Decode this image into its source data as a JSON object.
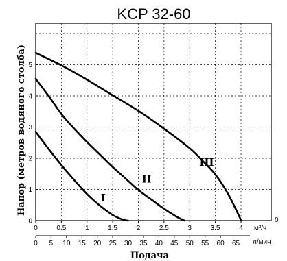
{
  "chart_data": {
    "type": "line",
    "title": "KCP 32-60",
    "xlabel": "Подача",
    "ylabel": "Напор (метров водяного столба)",
    "x_unit_primary": "м³/ч",
    "x_unit_secondary": "л/мин",
    "x_ticks_primary": [
      "0",
      "0.5",
      "1",
      "1.5",
      "2",
      "2.5",
      "3",
      "3.5",
      "4"
    ],
    "x_ticks_secondary": [
      "0",
      "5",
      "10",
      "15",
      "20",
      "25",
      "30",
      "35",
      "40",
      "45",
      "50",
      "55",
      "60",
      "65"
    ],
    "x_end_label": "0",
    "y_ticks": [
      "0",
      "1",
      "2",
      "3",
      "4",
      "5"
    ],
    "xlim": [
      0,
      4.35
    ],
    "ylim": [
      0,
      6.2
    ],
    "grid": true,
    "series": [
      {
        "name": "I",
        "x": [
          0,
          0.25,
          0.5,
          0.75,
          1.0,
          1.25,
          1.5,
          1.7,
          1.8
        ],
        "y": [
          2.85,
          2.3,
          1.78,
          1.3,
          0.85,
          0.48,
          0.18,
          0.03,
          0.0
        ]
      },
      {
        "name": "II",
        "x": [
          0,
          0.25,
          0.5,
          0.75,
          1.0,
          1.25,
          1.5,
          1.75,
          2.0,
          2.25,
          2.5,
          2.75,
          2.9
        ],
        "y": [
          4.55,
          4.0,
          3.42,
          2.95,
          2.52,
          2.12,
          1.72,
          1.35,
          0.98,
          0.68,
          0.38,
          0.12,
          0.0
        ]
      },
      {
        "name": "III",
        "x": [
          0,
          0.5,
          1.0,
          1.5,
          2.0,
          2.5,
          3.0,
          3.25,
          3.5,
          3.75,
          4.0
        ],
        "y": [
          5.38,
          4.98,
          4.52,
          4.02,
          3.52,
          2.95,
          2.32,
          1.92,
          1.48,
          0.85,
          0.02
        ]
      }
    ]
  }
}
